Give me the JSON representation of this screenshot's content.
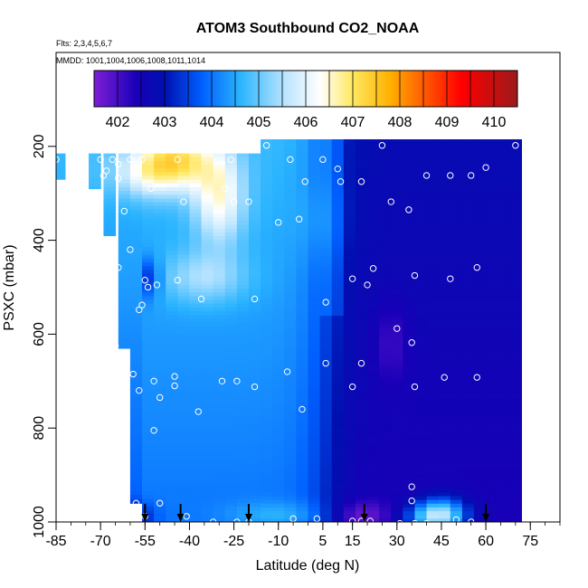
{
  "chart_data": {
    "type": "heatmap",
    "title": "ATOM3 Southbound CO2_NOAA",
    "flights_note": "Flts: 2,3,4,5,6,7",
    "dates_note": "MMDD: 1001,1004,1006,1008,1011,1014",
    "xlabel": "Latitude (deg N)",
    "ylabel": "PSXC (mbar)",
    "xlim": [
      -85,
      85
    ],
    "ylim": [
      1000,
      0
    ],
    "x_ticks": [
      -85,
      -70,
      -55,
      -40,
      -25,
      -10,
      5,
      15,
      30,
      45,
      60,
      75
    ],
    "y_ticks": [
      200,
      400,
      600,
      800,
      1000
    ],
    "colorbar": {
      "ticks": [
        402,
        403,
        404,
        405,
        406,
        407,
        408,
        409,
        410
      ],
      "range": [
        401.5,
        410.5
      ],
      "stops": [
        {
          "v": 401.5,
          "c": "#7f1fd6"
        },
        {
          "v": 402.4,
          "c": "#1800b8"
        },
        {
          "v": 403.0,
          "c": "#0010b0"
        },
        {
          "v": 403.8,
          "c": "#0060ff"
        },
        {
          "v": 404.6,
          "c": "#2ab4ff"
        },
        {
          "v": 405.6,
          "c": "#bfe6ff"
        },
        {
          "v": 406.3,
          "c": "#ffffff"
        },
        {
          "v": 407.0,
          "c": "#ffe860"
        },
        {
          "v": 407.8,
          "c": "#ffb000"
        },
        {
          "v": 408.6,
          "c": "#ff5000"
        },
        {
          "v": 409.3,
          "c": "#ff0000"
        },
        {
          "v": 410.5,
          "c": "#9c1a1a"
        }
      ]
    },
    "columns": [
      {
        "lat": -84,
        "ptop": 215,
        "pbot": 270
      },
      {
        "lat": -72,
        "ptop": 215,
        "pbot": 290
      },
      {
        "lat": -67,
        "ptop": 215,
        "pbot": 390
      },
      {
        "lat": -62,
        "ptop": 215,
        "pbot": 630
      },
      {
        "lat": -58,
        "ptop": 215,
        "pbot": 960
      },
      {
        "lat": -54,
        "ptop": 215,
        "pbot": 1000
      },
      {
        "lat": -50,
        "ptop": 215,
        "pbot": 1000
      },
      {
        "lat": -46,
        "ptop": 215,
        "pbot": 1000
      },
      {
        "lat": -42,
        "ptop": 215,
        "pbot": 1000
      },
      {
        "lat": -38,
        "ptop": 215,
        "pbot": 1000
      },
      {
        "lat": -34,
        "ptop": 215,
        "pbot": 1000
      },
      {
        "lat": -30,
        "ptop": 215,
        "pbot": 1000
      },
      {
        "lat": -26,
        "ptop": 215,
        "pbot": 1000
      },
      {
        "lat": -22,
        "ptop": 215,
        "pbot": 1000
      },
      {
        "lat": -18,
        "ptop": 215,
        "pbot": 1000
      },
      {
        "lat": -14,
        "ptop": 185,
        "pbot": 1000
      },
      {
        "lat": -10,
        "ptop": 185,
        "pbot": 1000
      },
      {
        "lat": -6,
        "ptop": 185,
        "pbot": 1000
      },
      {
        "lat": -2,
        "ptop": 185,
        "pbot": 1000
      },
      {
        "lat": 2,
        "ptop": 185,
        "pbot": 1000
      },
      {
        "lat": 6,
        "ptop": 185,
        "pbot": 1000
      },
      {
        "lat": 10,
        "ptop": 185,
        "pbot": 1000
      },
      {
        "lat": 14,
        "ptop": 185,
        "pbot": 1000
      },
      {
        "lat": 18,
        "ptop": 185,
        "pbot": 1000
      },
      {
        "lat": 22,
        "ptop": 185,
        "pbot": 1000
      },
      {
        "lat": 26,
        "ptop": 185,
        "pbot": 1000
      },
      {
        "lat": 30,
        "ptop": 185,
        "pbot": 1000
      },
      {
        "lat": 34,
        "ptop": 185,
        "pbot": 1000
      },
      {
        "lat": 38,
        "ptop": 185,
        "pbot": 1000
      },
      {
        "lat": 42,
        "ptop": 185,
        "pbot": 1000
      },
      {
        "lat": 46,
        "ptop": 185,
        "pbot": 1000
      },
      {
        "lat": 50,
        "ptop": 185,
        "pbot": 1000
      },
      {
        "lat": 54,
        "ptop": 185,
        "pbot": 1000
      },
      {
        "lat": 58,
        "ptop": 185,
        "pbot": 1000
      },
      {
        "lat": 62,
        "ptop": 185,
        "pbot": 1000
      },
      {
        "lat": 66,
        "ptop": 185,
        "pbot": 1000
      },
      {
        "lat": 70,
        "ptop": 185,
        "pbot": 1000
      }
    ],
    "anomalies": [
      {
        "lat": -45,
        "p": 230,
        "dlat": 9,
        "dp": 45,
        "amp": 2.4
      },
      {
        "lat": -30,
        "p": 310,
        "dlat": 6,
        "dp": 70,
        "amp": 1.8
      },
      {
        "lat": -35,
        "p": 480,
        "dlat": 10,
        "dp": 40,
        "amp": 1.0
      },
      {
        "lat": -56,
        "p": 260,
        "dlat": 8,
        "dp": 35,
        "amp": 1.0
      },
      {
        "lat": -53,
        "p": 480,
        "dlat": 2,
        "dp": 30,
        "amp": -1.3
      },
      {
        "lat": 45,
        "p": 985,
        "dlat": 6,
        "dp": 25,
        "amp": 3.0
      },
      {
        "lat": 38,
        "p": 990,
        "dlat": 5,
        "dp": 20,
        "amp": 0.8
      },
      {
        "lat": -60,
        "p": 990,
        "dlat": 5,
        "dp": 20,
        "amp": -1.3
      },
      {
        "lat": -10,
        "p": 985,
        "dlat": 12,
        "dp": 20,
        "amp": 0.6
      },
      {
        "lat": 18,
        "p": 985,
        "dlat": 6,
        "dp": 20,
        "amp": -0.8
      },
      {
        "lat": 28,
        "p": 620,
        "dlat": 4,
        "dp": 60,
        "amp": -0.5
      },
      {
        "lat": 5,
        "p": 360,
        "dlat": 6,
        "dp": 60,
        "amp": 0.3
      }
    ],
    "sample_points": [
      [
        -85,
        228
      ],
      [
        -76,
        228
      ],
      [
        -70,
        228
      ],
      [
        -68,
        252
      ],
      [
        -66,
        228
      ],
      [
        -64,
        238
      ],
      [
        -60,
        228
      ],
      [
        -56,
        228
      ],
      [
        -44,
        228
      ],
      [
        -26,
        228
      ],
      [
        -14,
        198
      ],
      [
        -6,
        228
      ],
      [
        5,
        228
      ],
      [
        10,
        248
      ],
      [
        25,
        198
      ],
      [
        -69,
        262
      ],
      [
        -64,
        268
      ],
      [
        -53,
        290
      ],
      [
        -42,
        318
      ],
      [
        -25,
        318
      ],
      [
        -28,
        290
      ],
      [
        -20,
        318
      ],
      [
        -10,
        362
      ],
      [
        -3,
        355
      ],
      [
        -1,
        275
      ],
      [
        11,
        275
      ],
      [
        18,
        275
      ],
      [
        28,
        318
      ],
      [
        34,
        335
      ],
      [
        40,
        262
      ],
      [
        48,
        262
      ],
      [
        55,
        262
      ],
      [
        60,
        245
      ],
      [
        70,
        198
      ],
      [
        -62,
        338
      ],
      [
        -60,
        420
      ],
      [
        -55,
        485
      ],
      [
        -51,
        495
      ],
      [
        -44,
        485
      ],
      [
        -56,
        538
      ],
      [
        -57,
        548
      ],
      [
        -54,
        500
      ],
      [
        -71,
        498
      ],
      [
        -66,
        492
      ],
      [
        -66,
        445
      ],
      [
        -64,
        458
      ],
      [
        -36,
        525
      ],
      [
        -18,
        525
      ],
      [
        6,
        532
      ],
      [
        15,
        482
      ],
      [
        20,
        495
      ],
      [
        22,
        460
      ],
      [
        36,
        475
      ],
      [
        48,
        482
      ],
      [
        57,
        458
      ],
      [
        -59,
        685
      ],
      [
        -52,
        700
      ],
      [
        -50,
        735
      ],
      [
        -45,
        690
      ],
      [
        -45,
        710
      ],
      [
        -65,
        625
      ],
      [
        -63,
        670
      ],
      [
        -57,
        720
      ],
      [
        -29,
        700
      ],
      [
        -24,
        700
      ],
      [
        -18,
        712
      ],
      [
        -7,
        680
      ],
      [
        -2,
        760
      ],
      [
        6,
        662
      ],
      [
        15,
        712
      ],
      [
        18,
        662
      ],
      [
        30,
        588
      ],
      [
        35,
        618
      ],
      [
        36,
        712
      ],
      [
        46,
        692
      ],
      [
        57,
        692
      ],
      [
        75,
        672
      ],
      [
        -37,
        765
      ],
      [
        -52,
        805
      ],
      [
        -65,
        960
      ],
      [
        -58,
        960
      ],
      [
        -50,
        960
      ],
      [
        -66,
        970
      ],
      [
        -68,
        960
      ],
      [
        -70,
        950
      ],
      [
        -55,
        988
      ],
      [
        -41,
        988
      ],
      [
        -32,
        1000
      ],
      [
        -24,
        1000
      ],
      [
        -20,
        1000
      ],
      [
        -5,
        993
      ],
      [
        3,
        993
      ],
      [
        15,
        998
      ],
      [
        18,
        998
      ],
      [
        21,
        998
      ],
      [
        31,
        1003
      ],
      [
        36,
        1003
      ],
      [
        40,
        1003
      ],
      [
        50,
        995
      ],
      [
        55,
        1000
      ],
      [
        35,
        925
      ],
      [
        35,
        955
      ],
      [
        76,
        1003
      ]
    ],
    "flight_markers_lat": [
      -55,
      -43,
      -20,
      19,
      60
    ]
  }
}
